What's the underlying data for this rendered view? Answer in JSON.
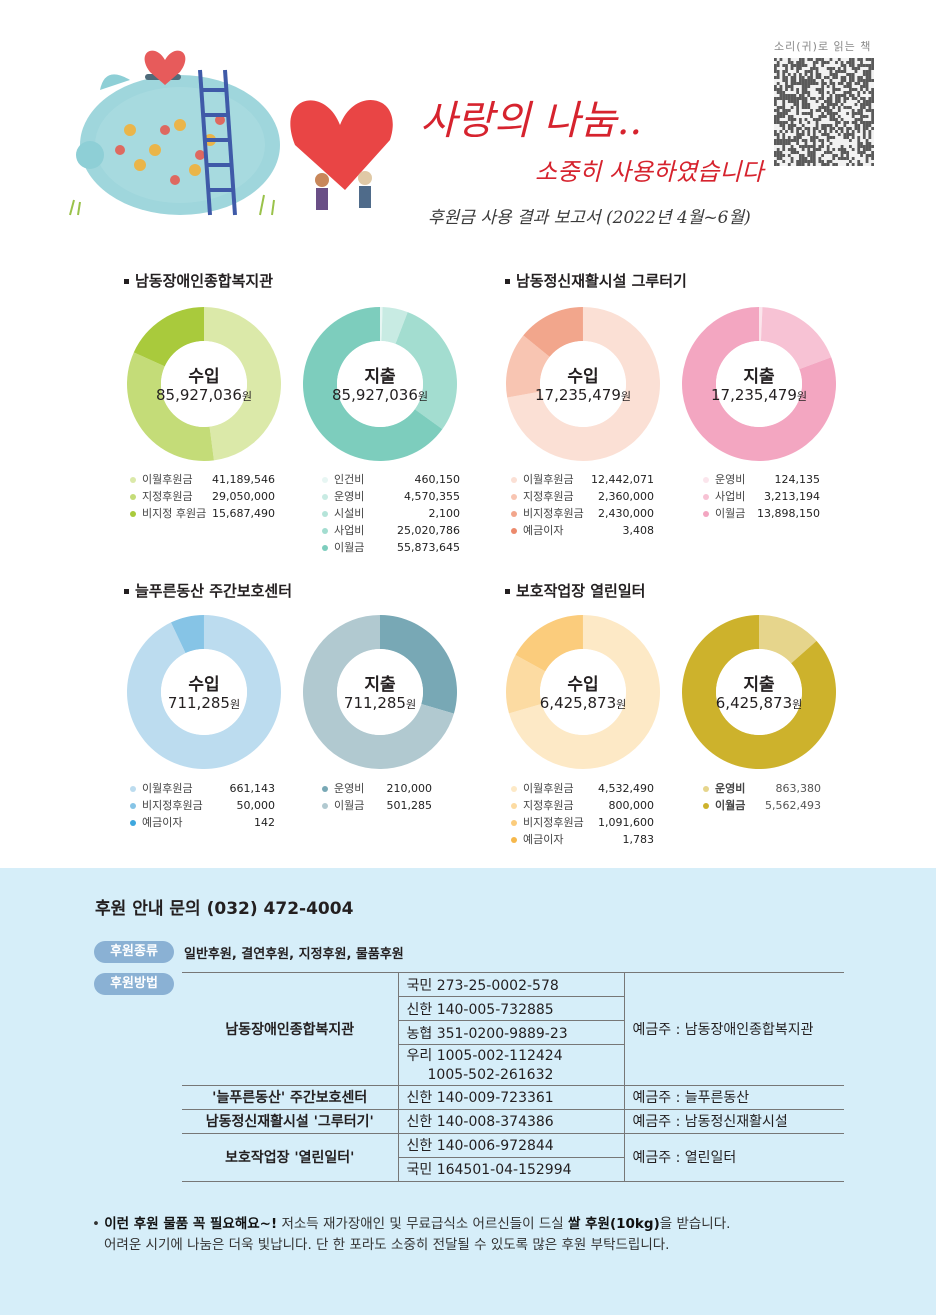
{
  "header": {
    "title_main": "사랑의 나눔..",
    "title_sub": "소중히 사용하였습니다",
    "title_report": "후원금 사용 결과 보고서 (2022년 4월~6월)",
    "qr_label": "소리(귀)로 읽는 책"
  },
  "sections": [
    {
      "title": "남동장애인종합복지관",
      "income": {
        "label": "수입",
        "amount": "85,927,036",
        "unit": "원",
        "items": [
          {
            "name": "이월후원금",
            "value": "41,189,546",
            "num": 41189546,
            "color": "#dbe9a9"
          },
          {
            "name": "지정후원금",
            "value": "29,050,000",
            "num": 29050000,
            "color": "#c4dc78"
          },
          {
            "name": "비지정 후원금",
            "value": "15,687,490",
            "num": 15687490,
            "color": "#a9ca3c"
          }
        ]
      },
      "expense": {
        "label": "지출",
        "amount": "85,927,036",
        "unit": "원",
        "items": [
          {
            "name": "인건비",
            "value": "460,150",
            "num": 460150,
            "color": "#e7f6f3"
          },
          {
            "name": "운영비",
            "value": "4,570,355",
            "num": 4570355,
            "color": "#c8ebe3"
          },
          {
            "name": "시설비",
            "value": "2,100",
            "num": 2100,
            "color": "#b5e4d9"
          },
          {
            "name": "사업비",
            "value": "25,020,786",
            "num": 25020786,
            "color": "#a3ddd0"
          },
          {
            "name": "이월금",
            "value": "55,873,645",
            "num": 55873645,
            "color": "#7dcdbd"
          }
        ]
      }
    },
    {
      "title": "남동정신재활시설 그루터기",
      "income": {
        "label": "수입",
        "amount": "17,235,479",
        "unit": "원",
        "items": [
          {
            "name": "이월후원금",
            "value": "12,442,071",
            "num": 12442071,
            "color": "#fbe0d5"
          },
          {
            "name": "지정후원금",
            "value": "2,360,000",
            "num": 2360000,
            "color": "#f8c5b2"
          },
          {
            "name": "비지정후원금",
            "value": "2,430,000",
            "num": 2430000,
            "color": "#f2a68c"
          },
          {
            "name": "예금이자",
            "value": "3,408",
            "num": 3408,
            "color": "#ec8a6c"
          }
        ]
      },
      "expense": {
        "label": "지출",
        "amount": "17,235,479",
        "unit": "원",
        "items": [
          {
            "name": "운영비",
            "value": "124,135",
            "num": 124135,
            "color": "#fbe5ec"
          },
          {
            "name": "사업비",
            "value": "3,213,194",
            "num": 3213194,
            "color": "#f7c2d4"
          },
          {
            "name": "이월금",
            "value": "13,898,150",
            "num": 13898150,
            "color": "#f3a6c1"
          }
        ]
      }
    },
    {
      "title": "늘푸른동산 주간보호센터",
      "income": {
        "label": "수입",
        "amount": "711,285",
        "unit": "원",
        "items": [
          {
            "name": "이월후원금",
            "value": "661,143",
            "num": 661143,
            "color": "#bcdcef"
          },
          {
            "name": "비지정후원금",
            "value": "50,000",
            "num": 50000,
            "color": "#86c4e6"
          },
          {
            "name": "예금이자",
            "value": "142",
            "num": 142,
            "color": "#3ea7de"
          }
        ]
      },
      "expense": {
        "label": "지출",
        "amount": "711,285",
        "unit": "원",
        "items": [
          {
            "name": "운영비",
            "value": "210,000",
            "num": 210000,
            "color": "#78a8b5"
          },
          {
            "name": "이월금",
            "value": "501,285",
            "num": 501285,
            "color": "#b1c9d0"
          }
        ]
      }
    },
    {
      "title": "보호작업장 열린일터",
      "income": {
        "label": "수입",
        "amount": "6,425,873",
        "unit": "원",
        "items": [
          {
            "name": "이월후원금",
            "value": "4,532,490",
            "num": 4532490,
            "color": "#fde9c6"
          },
          {
            "name": "지정후원금",
            "value": "800,000",
            "num": 800000,
            "color": "#fcdba2"
          },
          {
            "name": "비지정후원금",
            "value": "1,091,600",
            "num": 1091600,
            "color": "#fbcc7c"
          },
          {
            "name": "예금이자",
            "value": "1,783",
            "num": 1783,
            "color": "#f6b84c"
          }
        ]
      },
      "expense": {
        "label": "지출",
        "amount": "6,425,873",
        "unit": "원",
        "items": [
          {
            "name": "운영비",
            "value": "863,380",
            "num": 863380,
            "color": "#e6d58c"
          },
          {
            "name": "이월금",
            "value": "5,562,493",
            "num": 5562493,
            "color": "#cdb22c"
          }
        ]
      }
    }
  ],
  "support": {
    "inquiry": "후원 안내 문의 (032) 472-4004",
    "type_label": "후원종류",
    "types": "일반후원, 결연후원, 지정후원, 물품후원",
    "method_label": "후원방법",
    "accounts": {
      "org1": "남동장애인종합복지관",
      "org1_acc1": "국민 273-25-0002-578",
      "org1_acc2": "신한 140-005-732885",
      "org1_acc3": "농협 351-0200-9889-23",
      "org1_acc4": "우리 1005-002-112424",
      "org1_acc5": "1005-502-261632",
      "org1_holder": "예금주 : 남동장애인종합복지관",
      "org2": "'늘푸른동산' 주간보호센터",
      "org2_acc": "신한 140-009-723361",
      "org2_holder": "예금주 : 늘푸른동산",
      "org3": "남동정신재활시설 '그루터기'",
      "org3_acc": "신한 140-008-374386",
      "org3_holder": "예금주 : 남동정신재활시설",
      "org4": "보호작업장 '열린일터'",
      "org4_acc1": "신한 140-006-972844",
      "org4_acc2": "국민 164501-04-152994",
      "org4_holder": "예금주 : 열린일터"
    },
    "note_bold1": "이런 후원 물품 꼭 필요해요~!",
    "note_text1": " 저소득 재가장애인 및 무료급식소 어르신들이 드실 ",
    "note_bold2": "쌀 후원(10kg)",
    "note_text2": "을 받습니다.",
    "note_line2": "어려운 시기에 나눔은 더욱 빛납니다. 단 한 포라도 소중히 전달될 수 있도록 많은 후원 부탁드립니다."
  }
}
